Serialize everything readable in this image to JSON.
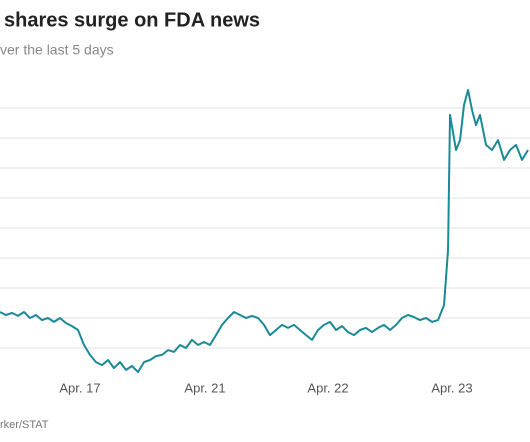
{
  "chart_data": {
    "type": "line",
    "title": "shares surge on FDA news",
    "subtitle": "ver the last 5 days",
    "source": "rker/STAT",
    "x": [
      0,
      1,
      2,
      3,
      4,
      5,
      6,
      7,
      8,
      9,
      10,
      11,
      12,
      13,
      14,
      15,
      16,
      17,
      18,
      19,
      20,
      21,
      22,
      23,
      24,
      25,
      26,
      27,
      28,
      29,
      30,
      31,
      32,
      33,
      34,
      35,
      36,
      37,
      38,
      39,
      40,
      41,
      42,
      43,
      44,
      45,
      46,
      47,
      48,
      49,
      50,
      51,
      52,
      53,
      54,
      55,
      56,
      57,
      58,
      59,
      60,
      61,
      62,
      63,
      64,
      65,
      66,
      67,
      68,
      69,
      70,
      71,
      72,
      73,
      74,
      74.67,
      75,
      76,
      76.67,
      77.33,
      78,
      78.67,
      79.33,
      80,
      81,
      82,
      83,
      84,
      85,
      86,
      87,
      88
    ],
    "series": [
      {
        "color": "#1a8a96",
        "values": [
          1.2,
          1.1,
          1.17,
          1.07,
          1.2,
          1.0,
          1.1,
          0.93,
          1.0,
          0.87,
          1.0,
          0.83,
          0.73,
          0.6,
          0.1,
          -0.23,
          -0.47,
          -0.57,
          -0.4,
          -0.67,
          -0.47,
          -0.73,
          -0.6,
          -0.8,
          -0.47,
          -0.4,
          -0.27,
          -0.23,
          -0.07,
          -0.13,
          0.1,
          0,
          0.27,
          0.1,
          0.2,
          0.1,
          0.43,
          0.77,
          1.0,
          1.2,
          1.1,
          1.0,
          1.07,
          1.0,
          0.77,
          0.43,
          0.6,
          0.77,
          0.67,
          0.77,
          0.6,
          0.43,
          0.27,
          0.6,
          0.77,
          0.87,
          0.6,
          0.73,
          0.53,
          0.43,
          0.6,
          0.67,
          0.53,
          0.67,
          0.77,
          0.6,
          0.77,
          1.0,
          1.1,
          1.03,
          0.93,
          1.0,
          0.87,
          0.93,
          1.43,
          3.27,
          7.77,
          6.6,
          6.93,
          8.1,
          8.6,
          7.93,
          7.43,
          7.77,
          6.77,
          6.6,
          6.93,
          6.27,
          6.6,
          6.77,
          6.27,
          6.6
        ]
      }
    ],
    "xlim": [
      0,
      88.33
    ],
    "xticks": [
      {
        "value": 13.33,
        "label": "Apr. 17"
      },
      {
        "value": 34.17,
        "label": "Apr. 21"
      },
      {
        "value": 54.67,
        "label": "Apr. 22"
      },
      {
        "value": 75.33,
        "label": "Apr. 23"
      }
    ],
    "ylim": [
      -1,
      9
    ],
    "yticks": [
      0,
      1,
      2,
      3,
      4,
      5,
      6,
      7,
      8
    ],
    "grid": true
  }
}
